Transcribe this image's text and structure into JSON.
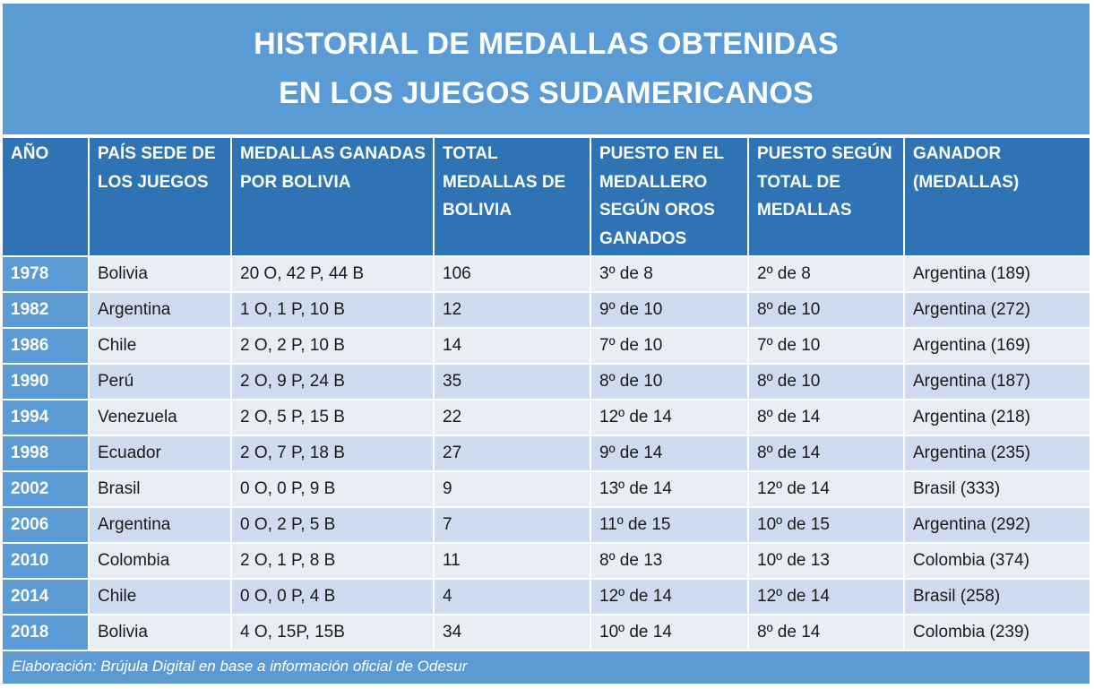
{
  "title": {
    "line1": "HISTORIAL DE MEDALLAS OBTENIDAS",
    "line2": "EN LOS JUEGOS SUDAMERICANOS"
  },
  "table": {
    "headers": [
      "AÑO",
      "PAÍS SEDE DE LOS JUEGOS",
      "MEDALLAS GANADAS POR BOLIVIA",
      "TOTAL MEDALLAS DE BOLIVIA",
      "PUESTO EN EL MEDALLERO SEGÚN OROS GANADOS",
      "PUESTO SEGÚN TOTAL DE MEDALLAS",
      "GANADOR (MEDALLAS)"
    ],
    "rows": [
      [
        "1978",
        "Bolivia",
        "20 O, 42 P, 44 B",
        "106",
        "3º de 8",
        "2º de 8",
        "Argentina (189)"
      ],
      [
        "1982",
        "Argentina",
        "1 O, 1 P, 10 B",
        "12",
        "9º de 10",
        "8º de 10",
        "Argentina (272)"
      ],
      [
        "1986",
        "Chile",
        "2 O, 2 P, 10 B",
        "14",
        "7º de 10",
        "7º de 10",
        "Argentina (169)"
      ],
      [
        "1990",
        "Perú",
        "2 O, 9 P, 24 B",
        "35",
        "8º de 10",
        "8º de 10",
        "Argentina (187)"
      ],
      [
        "1994",
        "Venezuela",
        "2 O, 5 P, 15 B",
        "22",
        "12º de 14",
        "8º de 14",
        "Argentina (218)"
      ],
      [
        "1998",
        "Ecuador",
        "2 O, 7 P, 18 B",
        "27",
        "9º de 14",
        "8º de 14",
        "Argentina (235)"
      ],
      [
        "2002",
        "Brasil",
        "0 O, 0 P, 9 B",
        "9",
        "13º de 14",
        "12º de 14",
        "Brasil (333)"
      ],
      [
        "2006",
        "Argentina",
        "0 O, 2 P, 5 B",
        "7",
        "11º de 15",
        "10º de 15",
        "Argentina (292)"
      ],
      [
        "2010",
        "Colombia",
        "2 O, 1 P, 8 B",
        "11",
        "8º de 13",
        "10º de 13",
        "Colombia (374)"
      ],
      [
        "2014",
        "Chile",
        "0 O, 0 P, 4 B",
        "4",
        "12º de 14",
        "12º de 14",
        "Brasil (258)"
      ],
      [
        "2018",
        "Bolivia",
        "4 O, 15P, 15B",
        "34",
        "10º de 14",
        "8º de 14",
        "Colombia (239)"
      ]
    ]
  },
  "footer": {
    "source": "Elaboración: Brújula Digital en base a información oficial de Odesur"
  },
  "colors": {
    "title_band": "#5b9bd5",
    "header_band": "#2e74b5",
    "row_light": "#e9edf6",
    "row_dark": "#cfdbef",
    "year_cell": "#5b9bd5"
  }
}
